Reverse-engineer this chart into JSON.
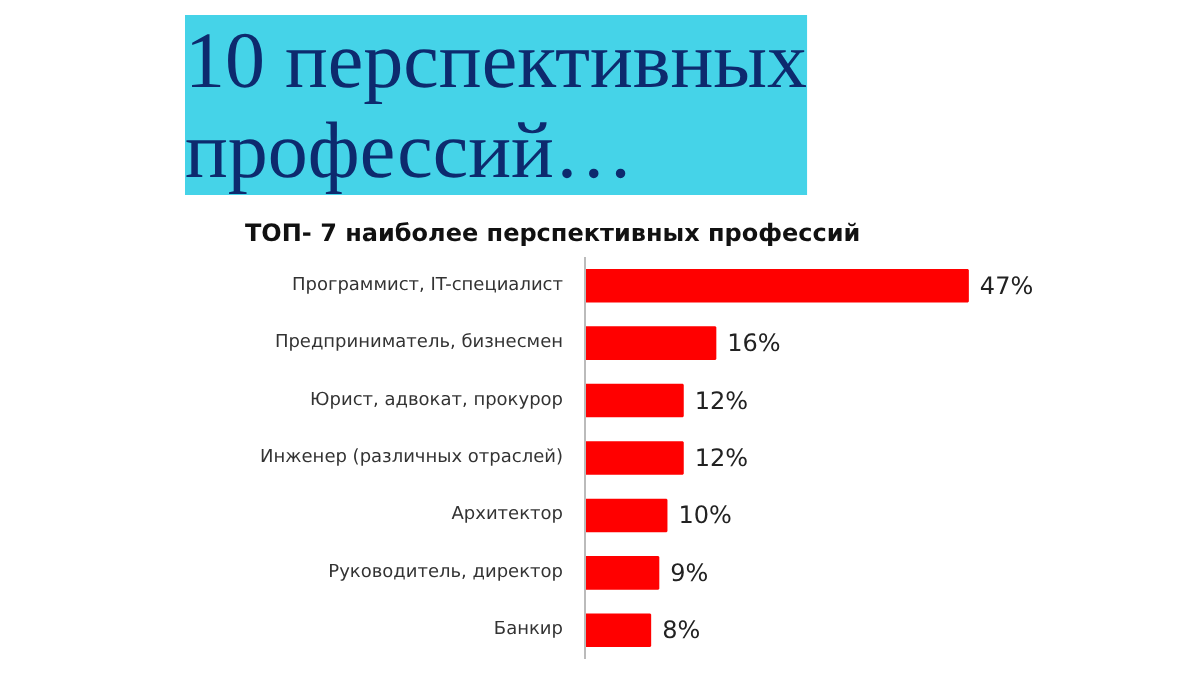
{
  "chart_data": {
    "type": "bar",
    "orientation": "horizontal",
    "title": "10 перспективных профессий…",
    "subtitle": "ТОП- 7 наиболее перспективных профессий",
    "categories": [
      "Программист, IT-специалист",
      "Предприниматель, бизнесмен",
      "Юрист, адвокат, прокурор",
      "Инженер (различных отраслей)",
      "Архитектор",
      "Руководитель, директор",
      "Банкир"
    ],
    "values": [
      47,
      16,
      12,
      12,
      10,
      9,
      8
    ],
    "value_labels": [
      "47%",
      "16%",
      "12%",
      "12%",
      "10%",
      "9%",
      "8%"
    ],
    "color": "#ff0000",
    "grid": false
  }
}
